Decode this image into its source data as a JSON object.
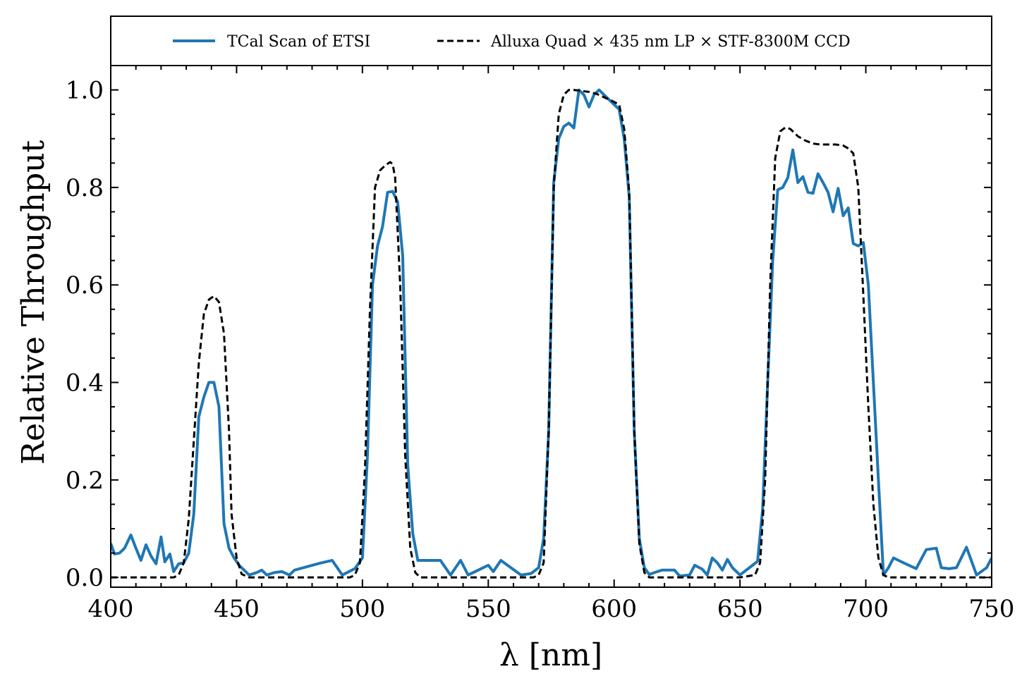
{
  "chart_data": {
    "type": "line",
    "xlabel": "λ [nm]",
    "ylabel": "Relative Throughput",
    "xlim": [
      400,
      750
    ],
    "ylim": [
      -0.02,
      1.05
    ],
    "x_ticks": [
      400,
      450,
      500,
      550,
      600,
      650,
      700,
      750
    ],
    "x_tick_labels": [
      "400",
      "450",
      "500",
      "550",
      "600",
      "650",
      "700",
      "750"
    ],
    "y_ticks": [
      0.0,
      0.2,
      0.4,
      0.6,
      0.8,
      1.0
    ],
    "y_tick_labels": [
      "0.0",
      "0.2",
      "0.4",
      "0.6",
      "0.8",
      "1.0"
    ],
    "grid": false,
    "legend": {
      "placement": "top",
      "columns": 2
    },
    "series": [
      {
        "name": "TCal Scan of ETSI",
        "color": "#1f77b4",
        "style": "solid",
        "points": [
          [
            400,
            0.07
          ],
          [
            401.5,
            0.048
          ],
          [
            403.5,
            0.05
          ],
          [
            405.5,
            0.06
          ],
          [
            408,
            0.087
          ],
          [
            410,
            0.06
          ],
          [
            412,
            0.035
          ],
          [
            414,
            0.067
          ],
          [
            416,
            0.044
          ],
          [
            418,
            0.028
          ],
          [
            420,
            0.083
          ],
          [
            421.5,
            0.032
          ],
          [
            423.5,
            0.048
          ],
          [
            425,
            0.012
          ],
          [
            427,
            0.028
          ],
          [
            429,
            0.03
          ],
          [
            431,
            0.05
          ],
          [
            433,
            0.13
          ],
          [
            435,
            0.33
          ],
          [
            437,
            0.37
          ],
          [
            439,
            0.4
          ],
          [
            441,
            0.4
          ],
          [
            443,
            0.35
          ],
          [
            445,
            0.11
          ],
          [
            447,
            0.06
          ],
          [
            449,
            0.04
          ],
          [
            451,
            0.025
          ],
          [
            453,
            0.015
          ],
          [
            455,
            0.005
          ],
          [
            458,
            0.01
          ],
          [
            460,
            0.015
          ],
          [
            462,
            0.005
          ],
          [
            465,
            0.01
          ],
          [
            468,
            0.012
          ],
          [
            471,
            0.005
          ],
          [
            473,
            0.015
          ],
          [
            478,
            0.022
          ],
          [
            483,
            0.029
          ],
          [
            488,
            0.035
          ],
          [
            492,
            0.005
          ],
          [
            497,
            0.018
          ],
          [
            500,
            0.04
          ],
          [
            502,
            0.25
          ],
          [
            504,
            0.6
          ],
          [
            506,
            0.68
          ],
          [
            508,
            0.72
          ],
          [
            510,
            0.79
          ],
          [
            512,
            0.792
          ],
          [
            514,
            0.77
          ],
          [
            516,
            0.66
          ],
          [
            518,
            0.23
          ],
          [
            520,
            0.09
          ],
          [
            522,
            0.035
          ],
          [
            526,
            0.035
          ],
          [
            531,
            0.035
          ],
          [
            535,
            0.005
          ],
          [
            539,
            0.035
          ],
          [
            542,
            0.005
          ],
          [
            546,
            0.015
          ],
          [
            550,
            0.025
          ],
          [
            552,
            0.012
          ],
          [
            555,
            0.035
          ],
          [
            559,
            0.02
          ],
          [
            563,
            0.005
          ],
          [
            567,
            0.008
          ],
          [
            570,
            0.02
          ],
          [
            572,
            0.08
          ],
          [
            574,
            0.3
          ],
          [
            576,
            0.81
          ],
          [
            578,
            0.9
          ],
          [
            580,
            0.925
          ],
          [
            582,
            0.932
          ],
          [
            584,
            0.922
          ],
          [
            586,
            1.0
          ],
          [
            588,
            0.99
          ],
          [
            590,
            0.965
          ],
          [
            592,
            0.99
          ],
          [
            594,
            1.0
          ],
          [
            596,
            0.99
          ],
          [
            598,
            0.98
          ],
          [
            600,
            0.97
          ],
          [
            602,
            0.96
          ],
          [
            604,
            0.9
          ],
          [
            606,
            0.78
          ],
          [
            608,
            0.3
          ],
          [
            610,
            0.08
          ],
          [
            612,
            0.02
          ],
          [
            614,
            0.006
          ],
          [
            616,
            0.01
          ],
          [
            619,
            0.015
          ],
          [
            624,
            0.015
          ],
          [
            626,
            0.003
          ],
          [
            630,
            0.005
          ],
          [
            632,
            0.025
          ],
          [
            635,
            0.017
          ],
          [
            637,
            0.005
          ],
          [
            639,
            0.04
          ],
          [
            641,
            0.03
          ],
          [
            643,
            0.015
          ],
          [
            645,
            0.037
          ],
          [
            647,
            0.02
          ],
          [
            650,
            0.005
          ],
          [
            655,
            0.025
          ],
          [
            657,
            0.033
          ],
          [
            659,
            0.14
          ],
          [
            661,
            0.4
          ],
          [
            663,
            0.65
          ],
          [
            665,
            0.795
          ],
          [
            667,
            0.8
          ],
          [
            669,
            0.82
          ],
          [
            671,
            0.877
          ],
          [
            673,
            0.81
          ],
          [
            675,
            0.822
          ],
          [
            677,
            0.79
          ],
          [
            679,
            0.788
          ],
          [
            681,
            0.828
          ],
          [
            683,
            0.81
          ],
          [
            685,
            0.79
          ],
          [
            687,
            0.75
          ],
          [
            689,
            0.798
          ],
          [
            691,
            0.742
          ],
          [
            693,
            0.758
          ],
          [
            695,
            0.685
          ],
          [
            697,
            0.68
          ],
          [
            699,
            0.687
          ],
          [
            701,
            0.6
          ],
          [
            703,
            0.4
          ],
          [
            705,
            0.2
          ],
          [
            707,
            0.005
          ],
          [
            709,
            0.02
          ],
          [
            711,
            0.04
          ],
          [
            715,
            0.03
          ],
          [
            720,
            0.018
          ],
          [
            724,
            0.057
          ],
          [
            728,
            0.06
          ],
          [
            730,
            0.02
          ],
          [
            733,
            0.018
          ],
          [
            736,
            0.02
          ],
          [
            740,
            0.062
          ],
          [
            744,
            0.005
          ],
          [
            748,
            0.02
          ],
          [
            750,
            0.04
          ]
        ]
      },
      {
        "name": "Alluxa Quad × 435 nm LP × STF-8300M CCD",
        "color": "#000000",
        "style": "dashed",
        "points": [
          [
            400,
            0
          ],
          [
            420,
            0
          ],
          [
            425,
            0
          ],
          [
            427,
            0.005
          ],
          [
            429,
            0.03
          ],
          [
            431,
            0.12
          ],
          [
            433,
            0.28
          ],
          [
            435,
            0.44
          ],
          [
            437,
            0.54
          ],
          [
            439,
            0.57
          ],
          [
            441,
            0.577
          ],
          [
            443,
            0.565
          ],
          [
            445,
            0.5
          ],
          [
            447,
            0.3
          ],
          [
            448,
            0.13
          ],
          [
            450,
            0.04
          ],
          [
            452,
            0.007
          ],
          [
            455,
            0
          ],
          [
            470,
            0
          ],
          [
            495,
            0
          ],
          [
            497,
            0.005
          ],
          [
            499,
            0.03
          ],
          [
            501,
            0.22
          ],
          [
            503,
            0.55
          ],
          [
            505,
            0.8
          ],
          [
            507,
            0.835
          ],
          [
            509,
            0.845
          ],
          [
            511,
            0.852
          ],
          [
            512,
            0.848
          ],
          [
            513,
            0.82
          ],
          [
            515,
            0.6
          ],
          [
            517,
            0.25
          ],
          [
            519,
            0.06
          ],
          [
            521,
            0.01
          ],
          [
            523,
            0
          ],
          [
            540,
            0
          ],
          [
            560,
            0
          ],
          [
            568,
            0
          ],
          [
            570,
            0.005
          ],
          [
            572,
            0.03
          ],
          [
            574,
            0.3
          ],
          [
            576,
            0.8
          ],
          [
            578,
            0.95
          ],
          [
            580,
            0.99
          ],
          [
            582,
            1.0
          ],
          [
            584,
            1.0
          ],
          [
            587,
            0.998
          ],
          [
            590,
            0.996
          ],
          [
            593,
            0.992
          ],
          [
            596,
            0.985
          ],
          [
            599,
            0.978
          ],
          [
            602,
            0.97
          ],
          [
            604,
            0.92
          ],
          [
            606,
            0.79
          ],
          [
            608,
            0.3
          ],
          [
            610,
            0.07
          ],
          [
            612,
            0.01
          ],
          [
            614,
            0
          ],
          [
            630,
            0
          ],
          [
            650,
            0
          ],
          [
            656,
            0.005
          ],
          [
            658,
            0.03
          ],
          [
            660,
            0.2
          ],
          [
            662,
            0.6
          ],
          [
            664,
            0.86
          ],
          [
            666,
            0.915
          ],
          [
            668,
            0.923
          ],
          [
            670,
            0.92
          ],
          [
            673,
            0.905
          ],
          [
            676,
            0.896
          ],
          [
            679,
            0.89
          ],
          [
            682,
            0.888
          ],
          [
            685,
            0.888
          ],
          [
            688,
            0.888
          ],
          [
            691,
            0.886
          ],
          [
            693,
            0.88
          ],
          [
            695,
            0.87
          ],
          [
            697,
            0.8
          ],
          [
            699,
            0.58
          ],
          [
            701,
            0.35
          ],
          [
            703,
            0.15
          ],
          [
            705,
            0.04
          ],
          [
            707,
            0.005
          ],
          [
            709,
            0
          ],
          [
            730,
            0
          ],
          [
            750,
            0
          ]
        ]
      }
    ]
  }
}
